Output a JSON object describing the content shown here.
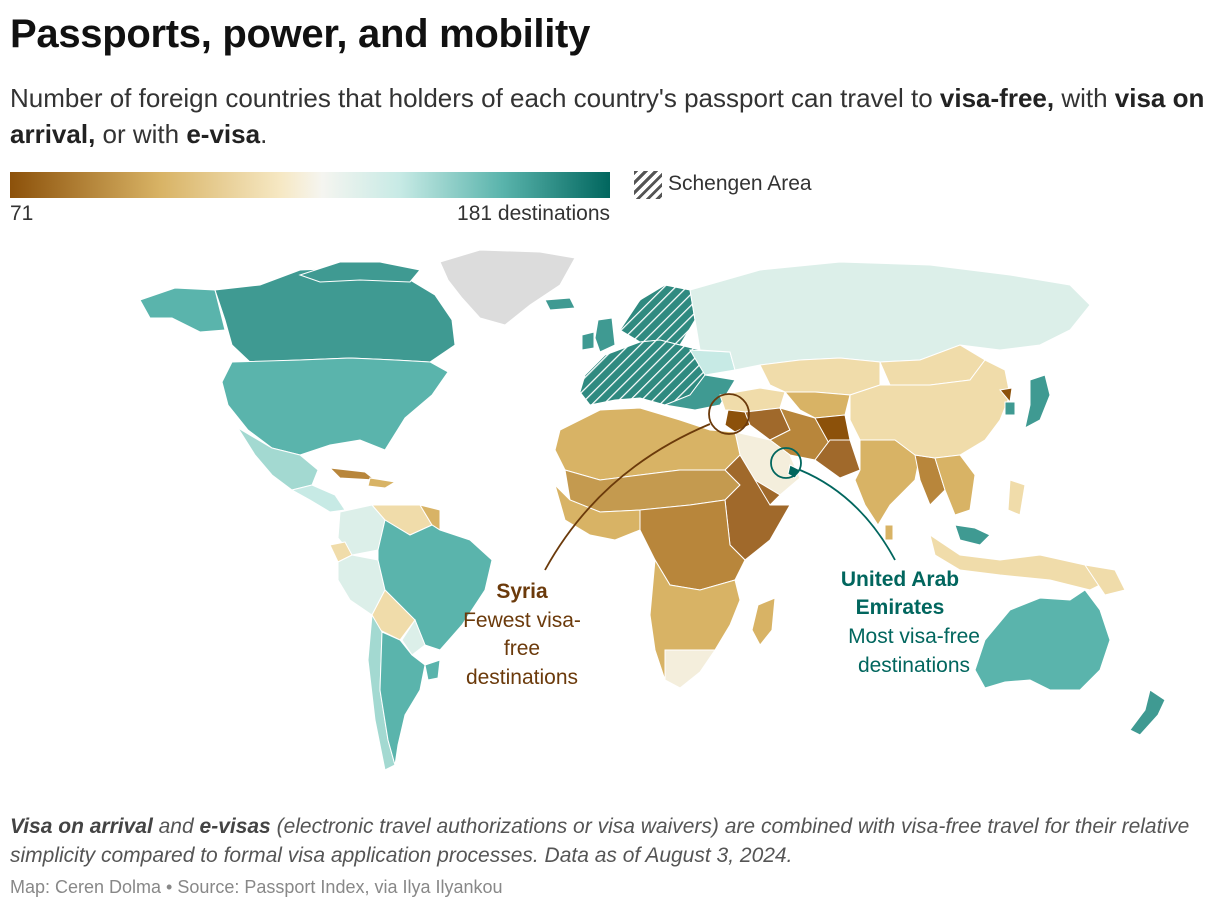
{
  "title": "Passports, power, and mobility",
  "subtitle": {
    "part1": "Number of foreign countries that holders of each country's passport can travel to ",
    "bold1": "visa-free,",
    "part2": " with ",
    "bold2": "visa on arrival,",
    "part3": " or with ",
    "bold3": "e-visa",
    "part4": "."
  },
  "legend": {
    "min_label": "71",
    "max_label": "181 destinations",
    "min_value": 71,
    "max_value": 181,
    "colors": [
      "#8c510a",
      "#d8b365",
      "#f6e8c3",
      "#c7eae5",
      "#5ab4ac",
      "#01665e"
    ],
    "schengen_label": "Schengen Area"
  },
  "annotations": {
    "syria": {
      "name": "Syria",
      "line1": "Fewest visa-",
      "line2": "free",
      "line3": "destinations",
      "color": "#6b3a0b"
    },
    "uae": {
      "name_line1": "United Arab",
      "name_line2": "Emirates",
      "line1": "Most visa-free",
      "line2": "destinations",
      "color": "#01665e"
    }
  },
  "note": {
    "bold1": "Visa on arrival",
    "part1": " and ",
    "bold2": "e-visas",
    "part2": " (electronic travel authorizations or visa waivers) are combined with visa-free travel for their relative simplicity compared to formal visa application processes. Data as of August 3, 2024."
  },
  "credit": "Map: Ceren Dolma • Source: Passport Index, via Ilya Ilyankou",
  "colors": {
    "lowest": "#8c510a",
    "low": "#b8863b",
    "mid_low": "#d8b365",
    "pale": "#f0dcaa",
    "neutral": "#f4eedc",
    "pale_teal": "#dcefe9",
    "teal": "#5ab4ac",
    "high_teal": "#3f9a92",
    "highest": "#01665e",
    "no_data": "#dcdcdc"
  }
}
